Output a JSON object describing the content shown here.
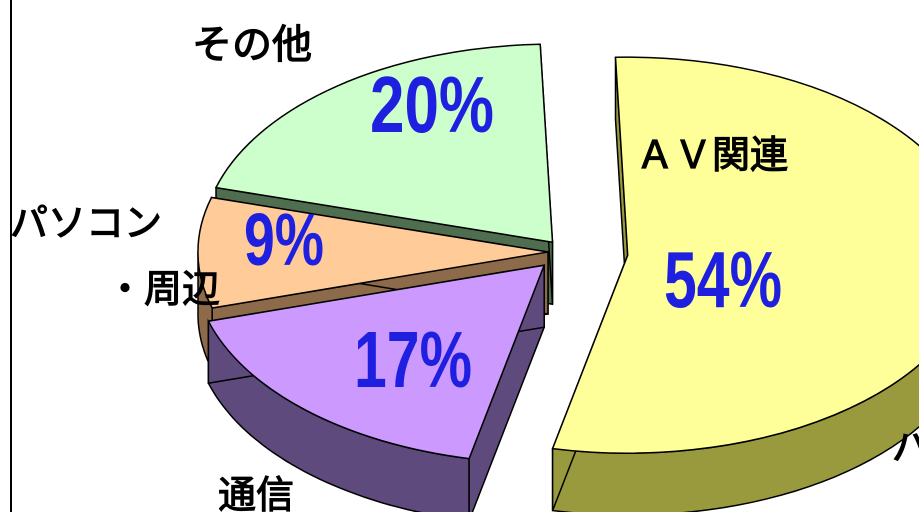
{
  "chart_data": {
    "type": "pie",
    "style": "3d-exploded",
    "slices": [
      {
        "label": "AV関連",
        "display_label": "ＡＶ関連",
        "value": 54,
        "value_label": "54%",
        "color": "#ffff99",
        "side_color": "#99993d"
      },
      {
        "label": "通信",
        "display_label": "通信",
        "value": 17,
        "value_label": "17%",
        "color": "#cc99ff",
        "side_color": "#5e4a7c"
      },
      {
        "label": "パソコン・周辺",
        "display_label_lines": [
          "パソコン",
          "・周辺"
        ],
        "value": 9,
        "value_label": "9%",
        "color": "#ffcc99",
        "side_color": "#8c6a4a"
      },
      {
        "label": "その他",
        "display_label": "その他",
        "value": 20,
        "value_label": "20%",
        "color": "#ccffcc",
        "side_color": "#4f6d4f"
      }
    ],
    "edge_fragment": "パ"
  }
}
